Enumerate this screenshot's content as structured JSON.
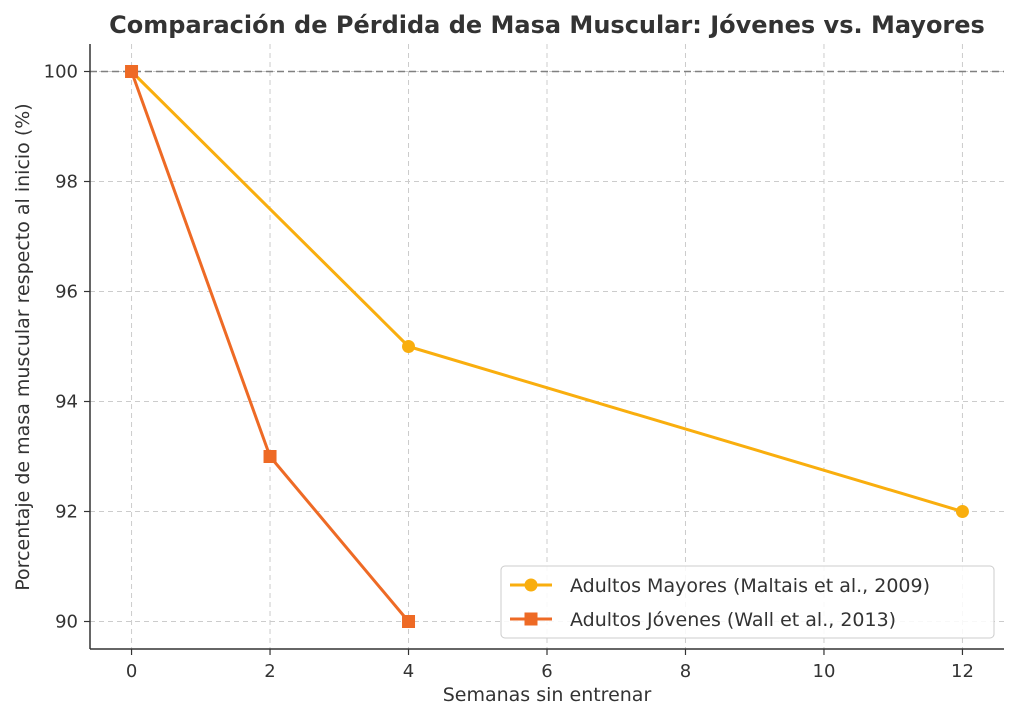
{
  "chart_data": {
    "type": "line",
    "title": "Comparación de Pérdida de Masa Muscular: Jóvenes vs. Mayores",
    "xlabel": "Semanas sin entrenar",
    "ylabel": "Porcentaje de masa muscular respecto al inicio (%)",
    "xlim": [
      -0.6,
      12.6
    ],
    "ylim": [
      89.5,
      100.5
    ],
    "xticks": [
      0,
      2,
      4,
      6,
      8,
      10,
      12
    ],
    "yticks": [
      90,
      92,
      94,
      96,
      98,
      100
    ],
    "grid": true,
    "reference_line": {
      "y": 100,
      "style": "dashed",
      "color": "#808080"
    },
    "legend_position": "lower-right",
    "series": [
      {
        "name": "Adultos Mayores (Maltais et al., 2009)",
        "marker": "circle",
        "color": "#F9AE0E",
        "x": [
          0,
          4,
          12
        ],
        "y": [
          100,
          95,
          92
        ]
      },
      {
        "name": "Adultos Jóvenes (Wall et al., 2013)",
        "marker": "square",
        "color": "#EE6A25",
        "x": [
          0,
          2,
          4
        ],
        "y": [
          100,
          93,
          90
        ]
      }
    ]
  }
}
